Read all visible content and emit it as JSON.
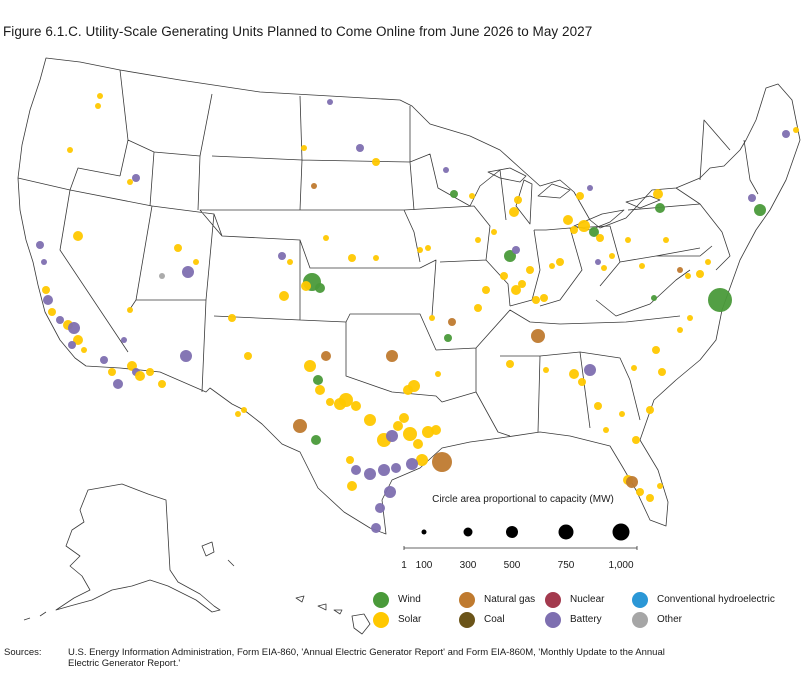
{
  "title": "Figure 6.1.C. Utility-Scale Generating Units Planned to Come Online from June 2026 to May 2027",
  "size_legend": {
    "title": "Circle area proportional to capacity (MW)",
    "ticks": [
      "1",
      "100",
      "300",
      "500",
      "750",
      "1,000"
    ],
    "values": [
      1,
      100,
      300,
      500,
      750,
      1000
    ]
  },
  "legend": [
    {
      "label": "Wind",
      "color": "#4a9a3a"
    },
    {
      "label": "Natural gas",
      "color": "#bf7a2f"
    },
    {
      "label": "Nuclear",
      "color": "#a33a4e"
    },
    {
      "label": "Conventional hydroelectric",
      "color": "#2b97d6"
    },
    {
      "label": "Solar",
      "color": "#ffc800"
    },
    {
      "label": "Coal",
      "color": "#6b5419"
    },
    {
      "label": "Battery",
      "color": "#7e6fb0"
    },
    {
      "label": "Other",
      "color": "#a6a6a6"
    }
  ],
  "sources_label": "Sources:",
  "sources_text": "U.S. Energy Information Administration, Form EIA-860, 'Annual Electric Generator Report' and Form EIA-860M, 'Monthly Update to the Annual Electric Generator Report.'"
}
